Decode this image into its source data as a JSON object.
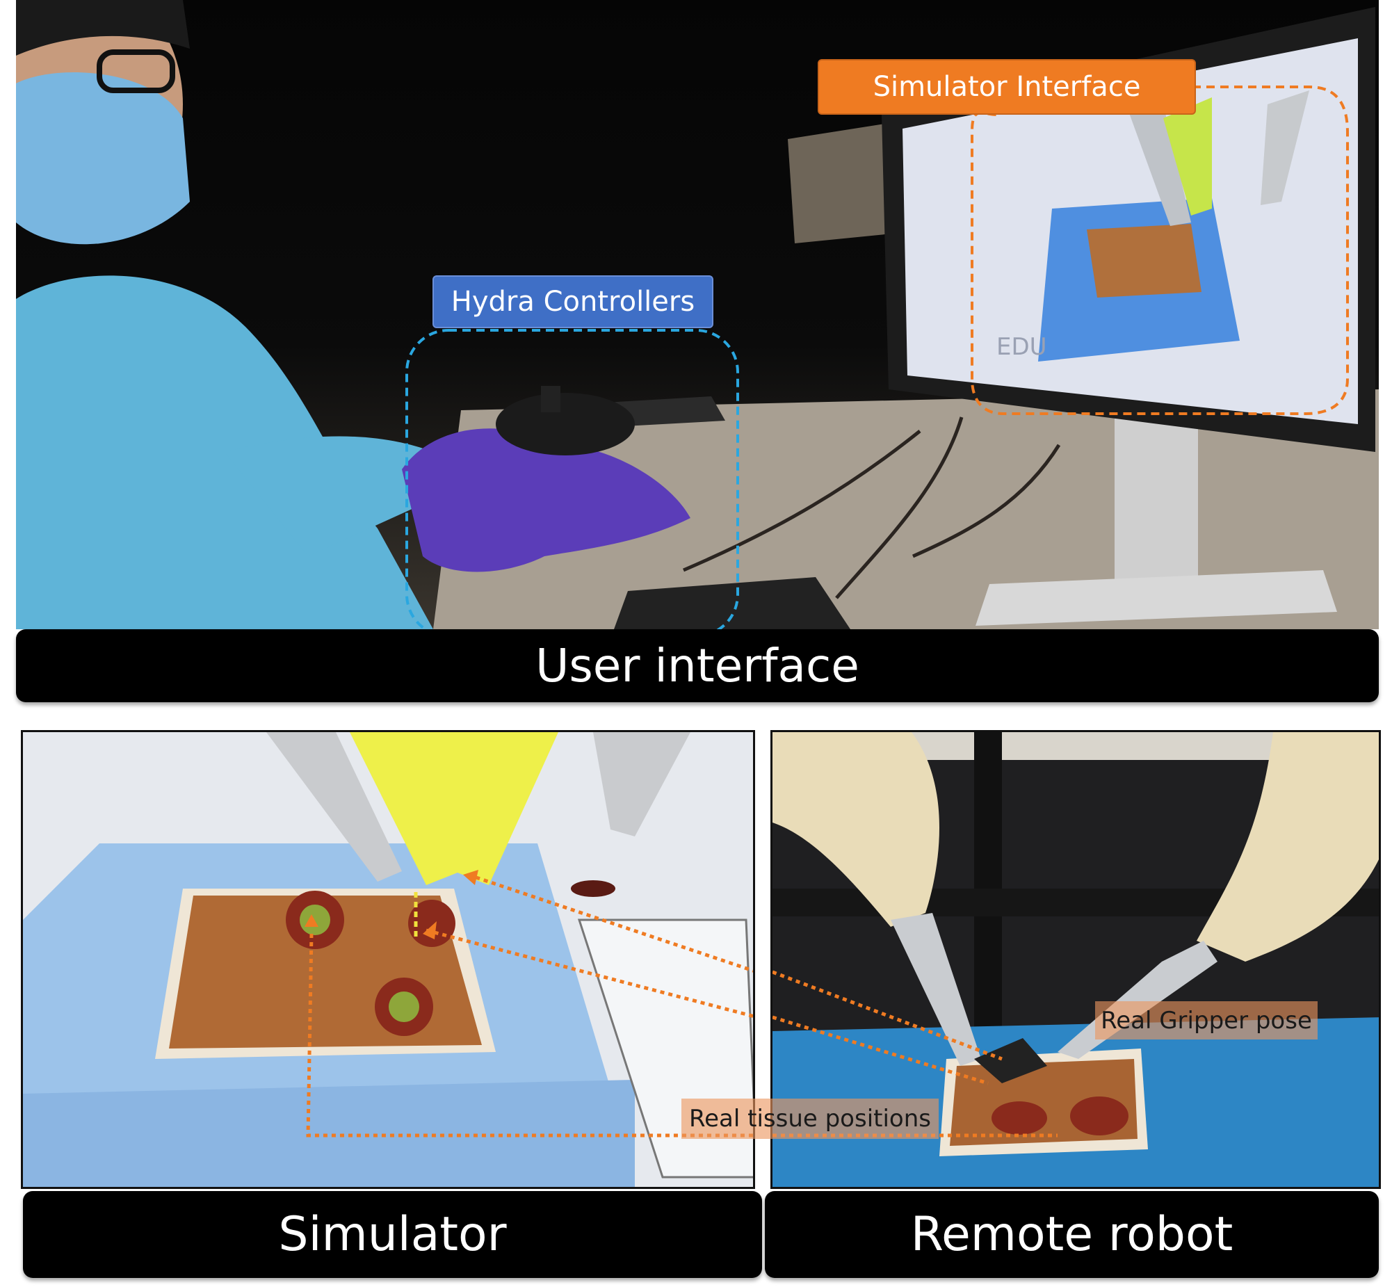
{
  "panels": {
    "user_interface": {
      "caption": "User interface"
    },
    "simulator": {
      "caption": "Simulator"
    },
    "remote_robot": {
      "caption": "Remote robot"
    }
  },
  "callouts": {
    "hydra_controllers": "Hydra Controllers",
    "simulator_interface": "Simulator Interface",
    "real_gripper_pose": "Real Gripper pose",
    "real_tissue_positions": "Real tissue positions"
  },
  "monitor_text": "EDU",
  "colors": {
    "hydra_accent": "#3f6fc6",
    "simulator_accent": "#ef7b22",
    "dashed_blue": "#2aa7e0",
    "dashed_orange": "#ef7b22",
    "caption_bar": "#000000",
    "drape_blue": "#9cc3ea",
    "glove_purple": "#5b3db8",
    "gown_blue": "#5fb4d8",
    "tissue_brown": "#b06a35",
    "robot_arm_cream": "#e9dcb8",
    "sim_tool_yellow": "#eef04a"
  }
}
